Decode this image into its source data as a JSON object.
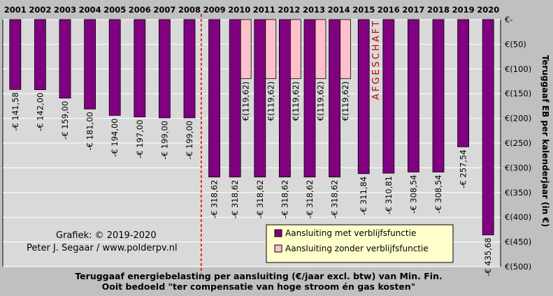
{
  "chart_data": {
    "type": "bar",
    "categories": [
      "2001",
      "2002",
      "2003",
      "2004",
      "2005",
      "2006",
      "2007",
      "2008",
      "2009",
      "2010",
      "2011",
      "2012",
      "2013",
      "2014",
      "2015",
      "2016",
      "2017",
      "2018",
      "2019",
      "2020"
    ],
    "series": [
      {
        "name": "Aansluiting met verblijfsfunctie",
        "color": "#800080",
        "values": [
          -141.58,
          -142.0,
          -159.0,
          -181.0,
          -194.0,
          -197.0,
          -199.0,
          -199.0,
          -318.62,
          -318.62,
          -318.62,
          -318.62,
          -318.62,
          -318.62,
          -311.84,
          -310.81,
          -308.54,
          -308.54,
          -257.54,
          -435.68
        ],
        "labels": [
          "-€ 141,58",
          "-€ 142,00",
          "-€ 159,00",
          "-€ 181,00",
          "-€ 194,00",
          "-€ 197,00",
          "-€ 199,00",
          "-€ 199,00",
          "-€ 318,62",
          "-€ 318,62",
          "-€ 318,62",
          "-€ 318,62",
          "-€ 318,62",
          "-€ 318,62",
          "-€ 311,84",
          "-€ 310,81",
          "-€ 308,54",
          "-€ 308,54",
          "-€ 257,54",
          "-€ 435,68"
        ]
      },
      {
        "name": "Aansluiting zonder verblijfsfunctie",
        "color": "#ffc0cb",
        "values": [
          null,
          null,
          null,
          null,
          null,
          null,
          null,
          null,
          null,
          -119.62,
          -119.62,
          -119.62,
          -119.62,
          -119.62,
          null,
          null,
          null,
          null,
          null,
          null
        ],
        "labels": [
          null,
          null,
          null,
          null,
          null,
          null,
          null,
          null,
          null,
          "€(119,62)",
          "€(119,62)",
          "€(119,62)",
          "€(119,62)",
          "€(119,62)",
          null,
          null,
          null,
          null,
          null,
          null
        ]
      }
    ],
    "ylim": [
      -500,
      0
    ],
    "yticks": [
      0,
      -50,
      -100,
      -150,
      -200,
      -250,
      -300,
      -350,
      -400,
      -450,
      -500
    ],
    "ytick_labels": [
      "€-",
      "€(50)",
      "€(100)",
      "€(150)",
      "€(200)",
      "€(250)",
      "€(300)",
      "€(350)",
      "€(400)",
      "€(450)",
      "€(500)"
    ],
    "ylabel": "Teruggaaf EB per kalenderjaar (in €)",
    "xlabel": "Teruggaaf energiebelasting  per aansluiting (€/jaar excl. btw)  van Min.  Fin.",
    "xlabel2": "Ooit bedoeld \"ter compensatie van hoge stroom én gas kosten\"",
    "annotation_afgeschaft": "AFGESCHAFT",
    "credit_line1": "Grafiek:  © 2019-2020",
    "credit_line2": "Peter J. Segaar / www.polderpv.nl",
    "divider_after": "2008",
    "legend_position": "bottom-right",
    "grid": true,
    "colors": {
      "plot_bg": "#d9d9d9",
      "frame_bg": "#c0c0c0",
      "grid": "#ffffff",
      "divider": "#e00000",
      "legend_bg": "#ffffcc",
      "annotation": "#c00000"
    }
  }
}
